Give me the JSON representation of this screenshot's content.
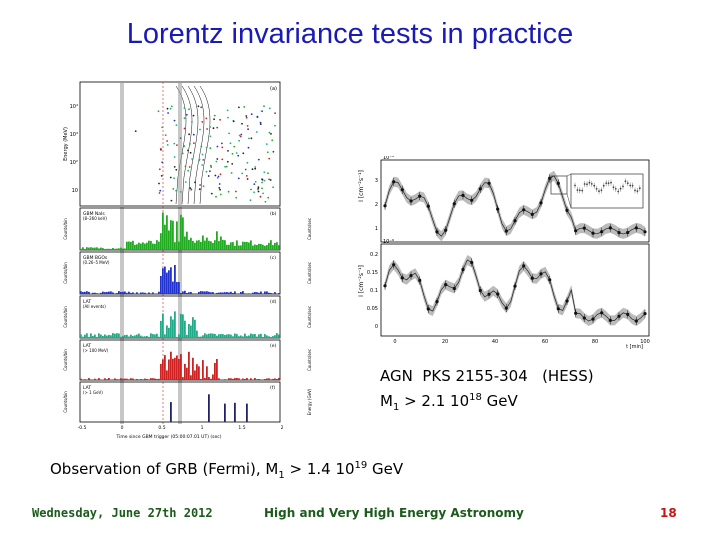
{
  "slide": {
    "title": "Lorentz invariance tests in practice",
    "caption_agn": {
      "line1": "AGN  PKS 2155-304   (HESS)",
      "m_prefix": "M",
      "m_sub": "1",
      "gt": " > 2.1 10",
      "exp": "18",
      "unit": " GeV"
    },
    "caption_grb": {
      "prefix": "Observation of GRB (Fermi), M",
      "m_sub": "1",
      "gt": " > 1.4 10",
      "exp": "19",
      "unit": " GeV"
    }
  },
  "footer": {
    "date": "Wednesday, June 27th 2012",
    "course": "High and Very High Energy Astronomy",
    "page": "18"
  },
  "fermi_figure": {
    "energy_axis": "Energy (MeV)",
    "energy_ticks": [
      "10⁴",
      "10³",
      "10²",
      "10"
    ],
    "panel_a": "(a)",
    "x_axis_title": "Time since GBM trigger (05:00:07.01 UT) (sec)",
    "x_ticks": [
      "-0.5",
      "0",
      "0.5",
      "1",
      "1.5",
      "2"
    ],
    "panels": [
      {
        "label": "GBM NaIs",
        "sub": "(8–260 keV)",
        "tag": "(b)",
        "ylabel": "Counts/bin",
        "rlabel": "Counts/sec",
        "color": "#22aa22"
      },
      {
        "label": "GBM BGOs",
        "sub": "(0.26–5 MeV)",
        "tag": "(c)",
        "ylabel": "Counts/bin",
        "rlabel": "Counts/sec",
        "color": "#2233cc"
      },
      {
        "label": "LAT",
        "sub": "(All events)",
        "tag": "(d)",
        "ylabel": "Counts/bin",
        "rlabel": "Counts/sec",
        "color": "#22aa88"
      },
      {
        "label": "LAT",
        "sub": "(> 100 MeV)",
        "tag": "(e)",
        "ylabel": "Counts/bin",
        "rlabel": "Counts/sec",
        "color": "#cc2222"
      },
      {
        "label": "LAT",
        "sub": "(> 1 GeV)",
        "tag": "(f)",
        "ylabel": "Counts/bin",
        "rlabel": "Energy (GeV)",
        "color": "#222266"
      }
    ]
  },
  "hess_figure": {
    "y_label": "I [cm⁻²s⁻¹]",
    "y_exp": "10⁻⁹",
    "top_ticks": [
      "3",
      "2",
      "1"
    ],
    "bottom_ticks": [
      "0.2",
      "0.15",
      "0.1",
      "0.05",
      "0"
    ],
    "x_ticks": [
      "0",
      "20",
      "40",
      "60",
      "80",
      "100"
    ],
    "x_label": "t [min]"
  }
}
